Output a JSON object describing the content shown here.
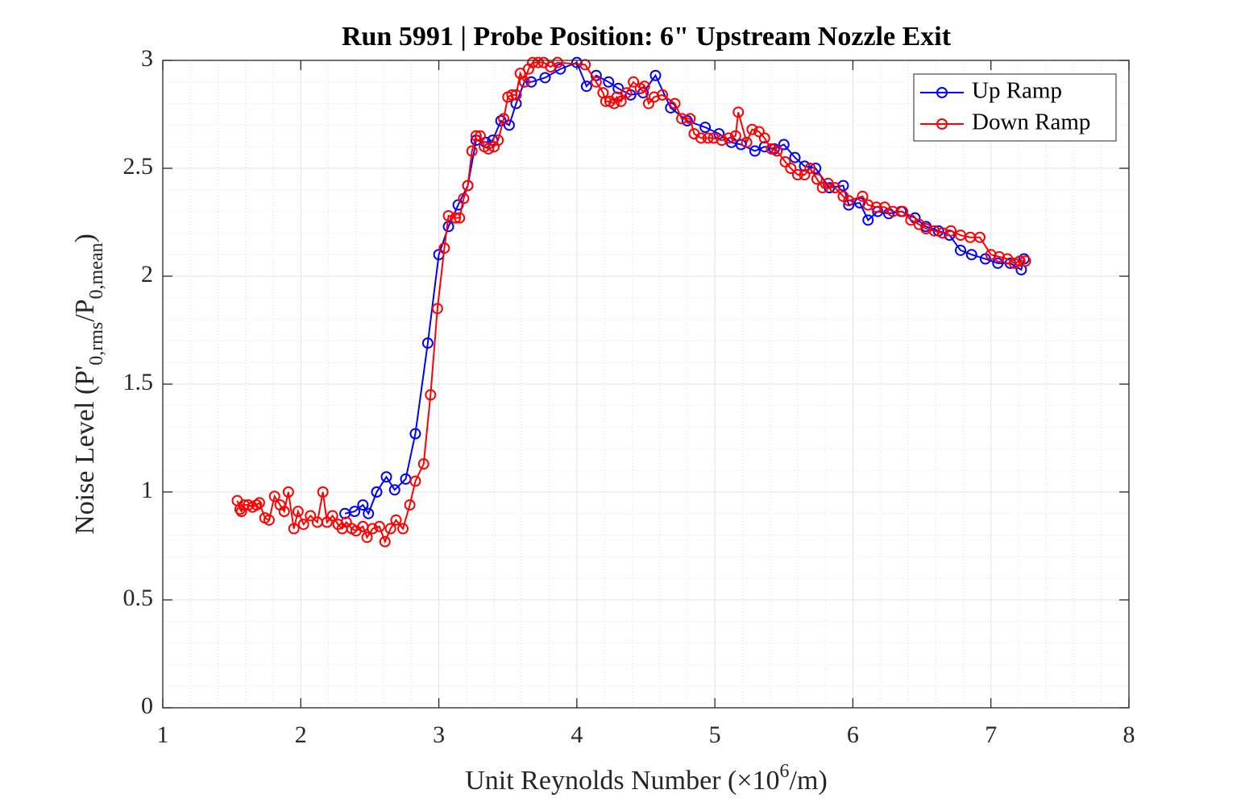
{
  "chart_data": {
    "type": "line",
    "title": "Run 5991 | Probe Position: 6\" Upstream Nozzle Exit",
    "xlabel": [
      "Unit Reynolds Number (×10",
      "6",
      "/m)"
    ],
    "ylabel": [
      "Noise Level (P'",
      "0,rms",
      "/P",
      "0,mean",
      ")"
    ],
    "xlim": [
      1,
      8
    ],
    "ylim": [
      0,
      3
    ],
    "xticks": [
      1,
      2,
      3,
      4,
      5,
      6,
      7,
      8
    ],
    "yticks": [
      0,
      0.5,
      1,
      1.5,
      2,
      2.5,
      3
    ],
    "xminorticks": [
      1.2,
      1.4,
      1.6,
      1.8,
      2.2,
      2.4,
      2.6,
      2.8,
      3.2,
      3.4,
      3.6,
      3.8,
      4.2,
      4.4,
      4.6,
      4.8,
      5.2,
      5.4,
      5.6,
      5.8,
      6.2,
      6.4,
      6.6,
      6.8,
      7.2,
      7.4,
      7.6,
      7.8
    ],
    "yminorticks": [
      0.1,
      0.2,
      0.3,
      0.4,
      0.6,
      0.7,
      0.8,
      0.9,
      1.1,
      1.2,
      1.3,
      1.4,
      1.6,
      1.7,
      1.8,
      1.9,
      2.1,
      2.2,
      2.3,
      2.4,
      2.6,
      2.7,
      2.8,
      2.9
    ],
    "grid": true,
    "minor_grid": true,
    "legend": "upper right",
    "marker": "circle",
    "series": [
      {
        "name": "Up Ramp",
        "color": "#0000ff",
        "x": [
          2.32,
          2.39,
          2.45,
          2.49,
          2.55,
          2.62,
          2.68,
          2.76,
          2.83,
          2.92,
          3.0,
          3.07,
          3.14,
          3.21,
          3.27,
          3.34,
          3.39,
          3.45,
          3.51,
          3.56,
          3.62,
          3.67,
          3.77,
          3.88,
          4.0,
          4.07,
          4.14,
          4.23,
          4.3,
          4.39,
          4.48,
          4.57,
          4.68,
          4.8,
          4.93,
          5.03,
          5.12,
          5.19,
          5.29,
          5.36,
          5.43,
          5.5,
          5.58,
          5.65,
          5.73,
          5.83,
          5.93,
          5.97,
          6.05,
          6.11,
          6.18,
          6.26,
          6.35,
          6.45,
          6.53,
          6.62,
          6.7,
          6.78,
          6.86,
          6.96,
          7.05,
          7.14,
          7.22,
          7.24
        ],
        "values": [
          0.9,
          0.91,
          0.94,
          0.9,
          1.0,
          1.07,
          1.01,
          1.06,
          1.27,
          1.69,
          2.1,
          2.23,
          2.33,
          2.42,
          2.63,
          2.62,
          2.63,
          2.72,
          2.7,
          2.8,
          2.9,
          2.9,
          2.92,
          2.96,
          2.99,
          2.88,
          2.93,
          2.9,
          2.87,
          2.84,
          2.85,
          2.93,
          2.78,
          2.72,
          2.69,
          2.66,
          2.62,
          2.61,
          2.58,
          2.6,
          2.59,
          2.61,
          2.55,
          2.51,
          2.5,
          2.41,
          2.42,
          2.33,
          2.34,
          2.26,
          2.3,
          2.29,
          2.3,
          2.27,
          2.23,
          2.21,
          2.19,
          2.12,
          2.1,
          2.08,
          2.06,
          2.06,
          2.03,
          2.08
        ]
      },
      {
        "name": "Down Ramp",
        "color": "#ff0000",
        "x": [
          1.54,
          1.56,
          1.57,
          1.59,
          1.62,
          1.65,
          1.68,
          1.7,
          1.74,
          1.77,
          1.81,
          1.85,
          1.88,
          1.91,
          1.95,
          1.98,
          2.02,
          2.07,
          2.12,
          2.16,
          2.19,
          2.23,
          2.27,
          2.3,
          2.33,
          2.37,
          2.4,
          2.45,
          2.48,
          2.52,
          2.57,
          2.61,
          2.65,
          2.69,
          2.74,
          2.79,
          2.83,
          2.89,
          2.94,
          2.99,
          3.04,
          3.07,
          3.12,
          3.15,
          3.18,
          3.21,
          3.24,
          3.27,
          3.3,
          3.33,
          3.36,
          3.4,
          3.43,
          3.47,
          3.5,
          3.53,
          3.56,
          3.59,
          3.62,
          3.65,
          3.68,
          3.72,
          3.76,
          3.81,
          3.86,
          4.06,
          4.14,
          4.19,
          4.21,
          4.24,
          4.27,
          4.29,
          4.32,
          4.36,
          4.41,
          4.46,
          4.49,
          4.52,
          4.56,
          4.62,
          4.71,
          4.76,
          4.82,
          4.85,
          4.9,
          4.95,
          4.99,
          5.05,
          5.1,
          5.15,
          5.17,
          5.23,
          5.27,
          5.32,
          5.36,
          5.41,
          5.45,
          5.51,
          5.55,
          5.6,
          5.65,
          5.69,
          5.74,
          5.78,
          5.82,
          5.87,
          5.93,
          5.97,
          6.07,
          6.11,
          6.17,
          6.23,
          6.29,
          6.36,
          6.42,
          6.48,
          6.53,
          6.59,
          6.65,
          6.71,
          6.78,
          6.85,
          6.92,
          7.0,
          7.06,
          7.12,
          7.17,
          7.21,
          7.25
        ],
        "values": [
          0.96,
          0.92,
          0.91,
          0.94,
          0.94,
          0.93,
          0.94,
          0.95,
          0.88,
          0.87,
          0.98,
          0.94,
          0.91,
          1.0,
          0.83,
          0.91,
          0.85,
          0.89,
          0.86,
          1.0,
          0.86,
          0.89,
          0.85,
          0.83,
          0.86,
          0.83,
          0.82,
          0.84,
          0.79,
          0.83,
          0.84,
          0.77,
          0.83,
          0.87,
          0.83,
          0.94,
          1.05,
          1.13,
          1.45,
          1.85,
          2.13,
          2.28,
          2.27,
          2.27,
          2.36,
          2.42,
          2.58,
          2.65,
          2.65,
          2.6,
          2.59,
          2.6,
          2.63,
          2.73,
          2.83,
          2.84,
          2.84,
          2.94,
          2.9,
          2.96,
          2.99,
          2.99,
          2.99,
          2.97,
          2.99,
          2.98,
          2.9,
          2.85,
          2.81,
          2.81,
          2.8,
          2.83,
          2.81,
          2.85,
          2.9,
          2.87,
          2.88,
          2.8,
          2.83,
          2.84,
          2.8,
          2.73,
          2.73,
          2.66,
          2.64,
          2.64,
          2.64,
          2.63,
          2.64,
          2.65,
          2.76,
          2.62,
          2.68,
          2.67,
          2.64,
          2.59,
          2.58,
          2.53,
          2.5,
          2.47,
          2.47,
          2.5,
          2.45,
          2.41,
          2.43,
          2.41,
          2.37,
          2.35,
          2.37,
          2.33,
          2.32,
          2.32,
          2.3,
          2.3,
          2.26,
          2.24,
          2.22,
          2.21,
          2.2,
          2.21,
          2.19,
          2.18,
          2.18,
          2.1,
          2.09,
          2.08,
          2.06,
          2.07,
          2.07
        ]
      }
    ]
  }
}
